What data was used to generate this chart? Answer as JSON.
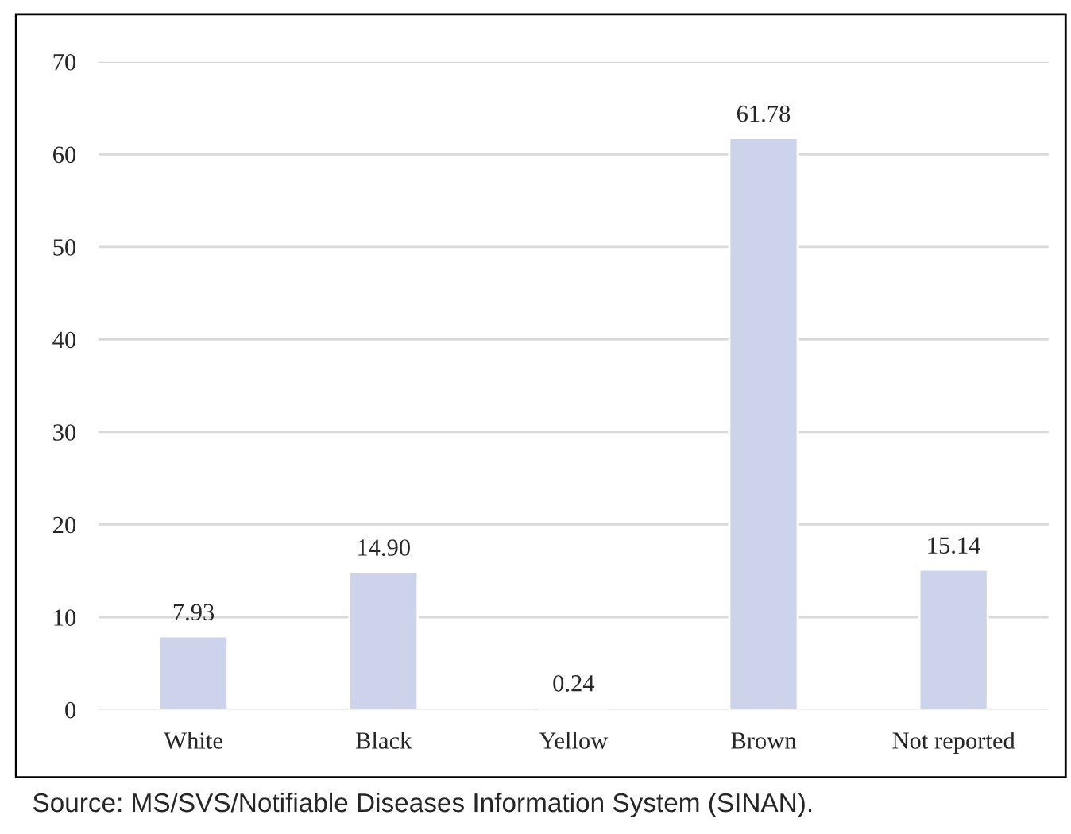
{
  "chart_data": {
    "type": "bar",
    "categories": [
      "White",
      "Black",
      "Yellow",
      "Brown",
      "Not reported"
    ],
    "values": [
      7.93,
      14.9,
      0.24,
      61.78,
      15.14
    ],
    "value_labels": [
      "7.93",
      "14.90",
      "0.24",
      "61.78",
      "15.14"
    ],
    "color": "#cdd3ea",
    "ylim": [
      0,
      70
    ],
    "yticks": [
      0,
      10,
      20,
      30,
      40,
      50,
      60,
      70
    ],
    "grid": "y",
    "annotations": [
      "Source: MS/SVS/Notifiable Diseases Information System (SINAN)."
    ]
  }
}
